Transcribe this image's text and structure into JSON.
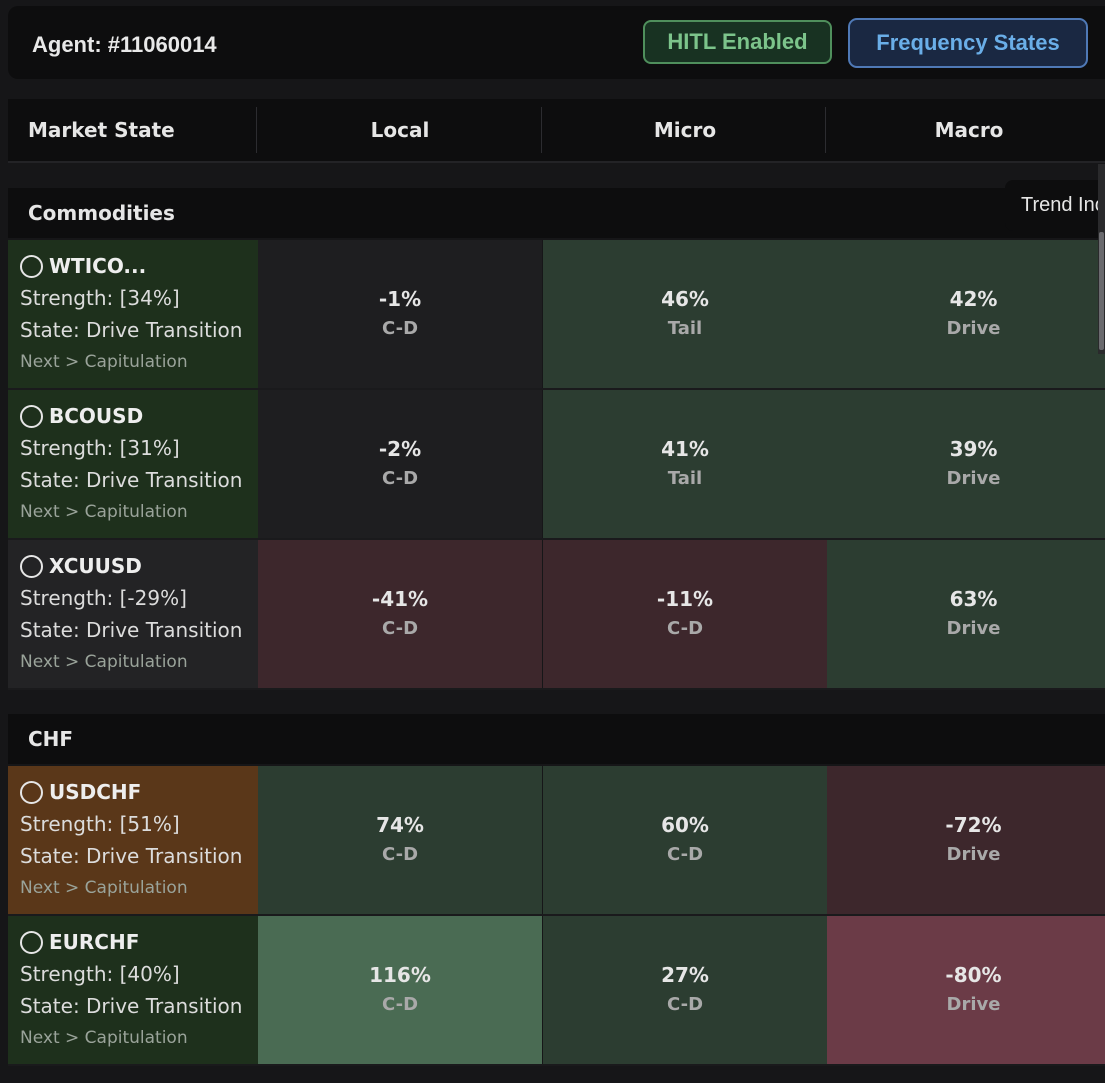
{
  "agent": {
    "title": "Agent: #11060014"
  },
  "buttons": {
    "hitl": "HITL Enabled",
    "frequency": "Frequency States"
  },
  "columns": [
    "Market State",
    "Local",
    "Micro",
    "Macro"
  ],
  "tooltip": "Trend Inc",
  "groups": [
    {
      "name": "Commodities",
      "rows": [
        {
          "symbol": "WTICO...",
          "strength": "Strength: [34%]",
          "state": "State: Drive Transition",
          "next": "Next > Capitulation",
          "name_bg": "#1e301c",
          "cells": [
            {
              "pct": "-1%",
              "label": "C-D",
              "bg": "#1e1e20"
            },
            {
              "pct": "46%",
              "label": "Tail",
              "bg": "#2c3d31"
            },
            {
              "pct": "42%",
              "label": "Drive",
              "bg": "#2c3d31"
            }
          ]
        },
        {
          "symbol": "BCOUSD",
          "strength": "Strength: [31%]",
          "state": "State: Drive Transition",
          "next": "Next > Capitulation",
          "name_bg": "#1e301c",
          "cells": [
            {
              "pct": "-2%",
              "label": "C-D",
              "bg": "#1e1e20"
            },
            {
              "pct": "41%",
              "label": "Tail",
              "bg": "#2c3d31"
            },
            {
              "pct": "39%",
              "label": "Drive",
              "bg": "#2c3d31"
            }
          ]
        },
        {
          "symbol": "XCUUSD",
          "strength": "Strength: [-29%]",
          "state": "State: Drive Transition",
          "next": "Next > Capitulation",
          "name_bg": "#232325",
          "cells": [
            {
              "pct": "-41%",
              "label": "C-D",
              "bg": "#3d272c"
            },
            {
              "pct": "-11%",
              "label": "C-D",
              "bg": "#3d272c"
            },
            {
              "pct": "63%",
              "label": "Drive",
              "bg": "#2c3d31"
            }
          ]
        }
      ]
    },
    {
      "name": "CHF",
      "rows": [
        {
          "symbol": "USDCHF",
          "strength": "Strength: [51%]",
          "state": "State: Drive Transition",
          "next": "Next > Capitulation",
          "name_bg": "#5a3719",
          "cells": [
            {
              "pct": "74%",
              "label": "C-D",
              "bg": "#2c3d31"
            },
            {
              "pct": "60%",
              "label": "C-D",
              "bg": "#2c3d31"
            },
            {
              "pct": "-72%",
              "label": "Drive",
              "bg": "#3d272c"
            }
          ]
        },
        {
          "symbol": "EURCHF",
          "strength": "Strength: [40%]",
          "state": "State: Drive Transition",
          "next": "Next > Capitulation",
          "name_bg": "#1e301c",
          "cells": [
            {
              "pct": "116%",
              "label": "C-D",
              "bg": "#4a6b53"
            },
            {
              "pct": "27%",
              "label": "C-D",
              "bg": "#2c3d31"
            },
            {
              "pct": "-80%",
              "label": "Drive",
              "bg": "#6b3b47"
            }
          ]
        }
      ]
    }
  ]
}
